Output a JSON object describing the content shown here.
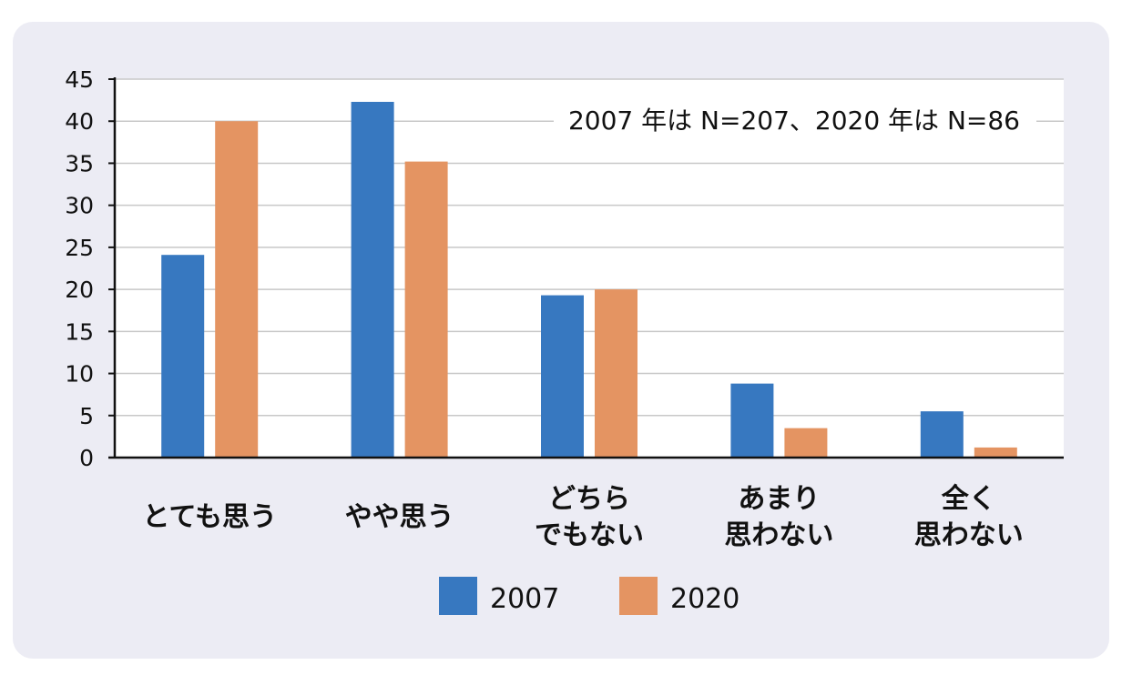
{
  "chart_data": {
    "type": "bar",
    "categories": [
      [
        "とても思う"
      ],
      [
        "やや思う"
      ],
      [
        "どちら",
        "でもない"
      ],
      [
        "あまり",
        "思わない"
      ],
      [
        "全く",
        "思わない"
      ]
    ],
    "series": [
      {
        "name": "2007",
        "color": "#3778c0",
        "values": [
          24.1,
          42.3,
          19.3,
          8.8,
          5.5
        ]
      },
      {
        "name": "2020",
        "color": "#e49462",
        "values": [
          40.0,
          35.2,
          20.0,
          3.5,
          1.2
        ]
      }
    ],
    "ylim": [
      0,
      45
    ],
    "yticks": [
      0,
      5,
      10,
      15,
      20,
      25,
      30,
      35,
      40,
      45
    ],
    "annotation": "2007 年は N=207、2020 年は N=86",
    "grid": true,
    "legend_position": "bottom"
  }
}
